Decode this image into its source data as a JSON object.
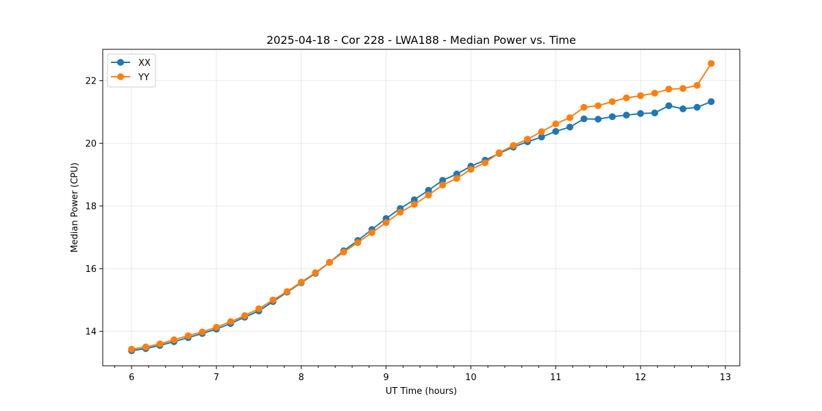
{
  "chart_data": {
    "type": "line",
    "title": "2025-04-18 - Cor 228 - LWA188 - Median Power vs. Time",
    "xlabel": "UT Time (hours)",
    "ylabel": "Median Power (CPU)",
    "xlim": [
      5.66,
      13.17
    ],
    "ylim": [
      12.9,
      23.0
    ],
    "xticks": [
      6,
      7,
      8,
      9,
      10,
      11,
      12,
      13
    ],
    "yticks": [
      14,
      16,
      18,
      20,
      22
    ],
    "x_minor_step": 0.2,
    "grid": true,
    "legend_position": "top-left",
    "x": [
      6.0,
      6.167,
      6.333,
      6.5,
      6.667,
      6.833,
      7.0,
      7.167,
      7.333,
      7.5,
      7.667,
      7.833,
      8.0,
      8.167,
      8.333,
      8.5,
      8.667,
      8.833,
      9.0,
      9.167,
      9.333,
      9.5,
      9.667,
      9.833,
      10.0,
      10.167,
      10.333,
      10.5,
      10.667,
      10.833,
      11.0,
      11.167,
      11.333,
      11.5,
      11.667,
      11.833,
      12.0,
      12.167,
      12.333,
      12.5,
      12.667,
      12.833
    ],
    "series": [
      {
        "name": "XX",
        "color": "#1f77b4",
        "values": [
          13.38,
          13.45,
          13.55,
          13.67,
          13.8,
          13.93,
          14.07,
          14.25,
          14.45,
          14.65,
          14.95,
          15.25,
          15.55,
          15.85,
          16.2,
          16.57,
          16.9,
          17.25,
          17.6,
          17.92,
          18.2,
          18.5,
          18.82,
          19.02,
          19.27,
          19.46,
          19.68,
          19.88,
          20.05,
          20.2,
          20.38,
          20.52,
          20.78,
          20.77,
          20.85,
          20.9,
          20.95,
          20.97,
          21.2,
          21.1,
          21.15,
          21.33
        ]
      },
      {
        "name": "YY",
        "color": "#ff7f0e",
        "values": [
          13.43,
          13.5,
          13.6,
          13.73,
          13.86,
          13.98,
          14.13,
          14.31,
          14.5,
          14.72,
          15.0,
          15.27,
          15.57,
          15.87,
          16.2,
          16.53,
          16.83,
          17.15,
          17.47,
          17.8,
          18.05,
          18.35,
          18.67,
          18.88,
          19.17,
          19.38,
          19.7,
          19.93,
          20.13,
          20.37,
          20.62,
          20.82,
          21.15,
          21.2,
          21.33,
          21.45,
          21.52,
          21.6,
          21.73,
          21.75,
          21.85,
          22.55
        ]
      }
    ]
  }
}
